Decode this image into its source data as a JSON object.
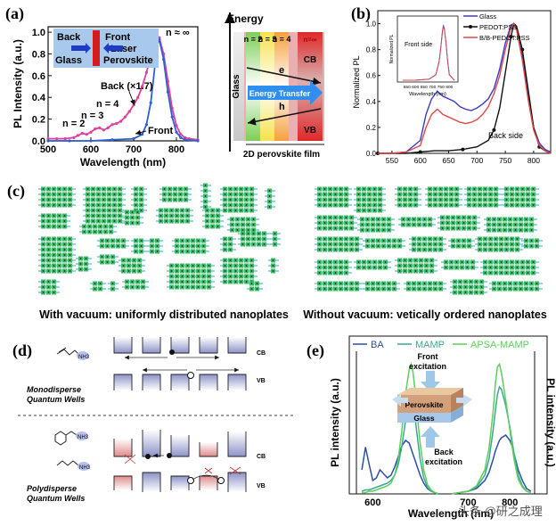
{
  "panels": {
    "a": {
      "label": "(a)",
      "chart_data": {
        "type": "line",
        "title": "",
        "xlabel": "Wavelength (nm)",
        "ylabel": "PL Intensity (a.u.)",
        "xlim": [
          500,
          850
        ],
        "ylim": [
          0.0,
          1.05
        ],
        "xticks": [
          "500",
          "600",
          "700",
          "800"
        ],
        "yticks": [
          "0.0",
          "0.2",
          "0.4",
          "0.6",
          "0.8",
          "1.0"
        ],
        "series": [
          {
            "name": "Back (×1.7)",
            "color": "#e0409a",
            "x": [
              500,
              520,
              540,
              560,
              570,
              580,
              590,
              600,
              610,
              620,
              630,
              640,
              650,
              660,
              670,
              680,
              690,
              700,
              710,
              720,
              730,
              740,
              750,
              755,
              760,
              770,
              780,
              790,
              800,
              810,
              820,
              830,
              850
            ],
            "y": [
              0.02,
              0.02,
              0.02,
              0.03,
              0.05,
              0.07,
              0.06,
              0.08,
              0.11,
              0.12,
              0.1,
              0.12,
              0.15,
              0.16,
              0.18,
              0.22,
              0.27,
              0.33,
              0.4,
              0.5,
              0.63,
              0.78,
              0.93,
              0.96,
              0.95,
              0.8,
              0.55,
              0.3,
              0.14,
              0.06,
              0.03,
              0.02,
              0.01
            ]
          },
          {
            "name": "Front",
            "color": "#2f5fd0",
            "x": [
              500,
              550,
              600,
              650,
              700,
              720,
              730,
              740,
              750,
              755,
              760,
              770,
              780,
              790,
              800,
              810,
              820,
              850
            ],
            "y": [
              0.0,
              0.0,
              0.0,
              0.01,
              0.02,
              0.06,
              0.15,
              0.35,
              0.7,
              0.88,
              0.93,
              0.75,
              0.45,
              0.22,
              0.08,
              0.03,
              0.01,
              0.0
            ]
          }
        ],
        "annotations": [
          "n = 2",
          "n = 3",
          "n = 4",
          "n ≈ ∞",
          "Back (×1.7)",
          "Front"
        ],
        "inset": {
          "back": "Back",
          "front": "Front",
          "glass": "Glass",
          "laser": "Laser",
          "perovskite": "Perovskite"
        }
      },
      "diagram": {
        "energy": "Energy",
        "glass": "Glass",
        "wells": [
          "n = 2",
          "n = 3",
          "n = 4",
          "n=∞"
        ],
        "cb": "CB",
        "vb": "VB",
        "electron": "e",
        "hole": "h",
        "transfer": "Energy Transfer",
        "film": "2D perovskite film"
      }
    },
    "b": {
      "label": "(b)",
      "chart_data": {
        "type": "line",
        "xlabel": "",
        "ylabel": "Normalized PL",
        "xlim": [
          525,
          830
        ],
        "ylim": [
          0.0,
          1.1
        ],
        "xticks": [
          "550",
          "600",
          "650",
          "700",
          "750",
          "800"
        ],
        "yticks": [
          "0.0",
          "0.2",
          "0.4",
          "0.6",
          "0.8",
          "1.0"
        ],
        "series": [
          {
            "name": "Glass",
            "color": "#3a3ac8",
            "x": [
              525,
              550,
              575,
              600,
              610,
              620,
              630,
              640,
              650,
              660,
              670,
              680,
              690,
              700,
              710,
              720,
              730,
              740,
              750,
              760,
              765,
              770,
              780,
              790,
              800,
              810,
              820,
              830
            ],
            "y": [
              0.0,
              0.0,
              0.01,
              0.1,
              0.3,
              0.42,
              0.48,
              0.44,
              0.42,
              0.4,
              0.36,
              0.34,
              0.33,
              0.35,
              0.38,
              0.42,
              0.5,
              0.65,
              0.85,
              0.99,
              1.0,
              0.96,
              0.75,
              0.45,
              0.2,
              0.08,
              0.03,
              0.01
            ]
          },
          {
            "name": "PEDOT:PSS",
            "color": "#111111",
            "x": [
              525,
              550,
              575,
              600,
              625,
              650,
              675,
              700,
              720,
              730,
              740,
              750,
              760,
              765,
              770,
              780,
              790,
              800,
              810,
              820,
              830
            ],
            "y": [
              0.0,
              0.0,
              0.0,
              0.01,
              0.02,
              0.02,
              0.03,
              0.05,
              0.1,
              0.18,
              0.35,
              0.62,
              0.9,
              1.0,
              0.98,
              0.8,
              0.5,
              0.2,
              0.05,
              0.02,
              0.0
            ]
          },
          {
            "name": "B/B-PEDOT:PSS",
            "color": "#e04848",
            "x": [
              525,
              550,
              575,
              600,
              610,
              620,
              630,
              640,
              650,
              660,
              670,
              680,
              690,
              700,
              710,
              720,
              730,
              740,
              750,
              760,
              765,
              770,
              780,
              790,
              800,
              810,
              820,
              830
            ],
            "y": [
              0.0,
              0.0,
              0.01,
              0.06,
              0.2,
              0.3,
              0.34,
              0.3,
              0.28,
              0.26,
              0.24,
              0.23,
              0.24,
              0.26,
              0.3,
              0.36,
              0.46,
              0.6,
              0.8,
              0.97,
              1.0,
              0.95,
              0.72,
              0.42,
              0.18,
              0.06,
              0.02,
              0.0
            ]
          }
        ],
        "annotations": [
          "Back side"
        ],
        "inset": {
          "title": "Front side",
          "xlabel": "Wavelength (nm)",
          "ylabel": "Normalized PL",
          "xticks": [
            "550",
            "600",
            "650",
            "700",
            "750",
            "800"
          ]
        }
      }
    },
    "c": {
      "label": "(c)",
      "caption_left": "With vacuum: uniformly distributed nanoplates",
      "caption_right": "Without vacuum: vetically ordered nanoplates"
    },
    "d": {
      "label": "(d)",
      "cb": "CB",
      "vb": "VB",
      "mono_line1": "Monodisperse",
      "mono_line2": "Quantum Wells",
      "poly_line1": "Polydisperse",
      "poly_line2": "Quantum Wells",
      "nh3": "NH3"
    },
    "e": {
      "label": "(e)",
      "chart_data": {
        "type": "line",
        "xlabel": "Wavelength (nm)",
        "ylabel": "PL intensity (a.u.)",
        "legend": [
          "BA",
          "MAMP",
          "APSA-MAMP"
        ],
        "colors": [
          "#2b4fa8",
          "#3aa890",
          "#5ccf5c"
        ],
        "left": {
          "x": [
            570,
            580,
            590,
            600,
            610,
            620,
            630,
            640,
            650,
            660,
            670,
            680,
            690,
            700,
            705,
            710,
            715,
            720,
            730,
            740,
            750,
            760,
            770,
            780
          ],
          "series": [
            [
              0.18,
              0.35,
              0.22,
              0.1,
              0.12,
              0.18,
              0.15,
              0.12,
              0.14,
              0.2,
              0.28,
              0.36,
              0.4,
              0.38,
              0.34,
              0.3,
              0.26,
              0.22,
              0.14,
              0.08,
              0.04,
              0.02,
              0.01,
              0.0
            ],
            [
              0.02,
              0.03,
              0.03,
              0.04,
              0.05,
              0.06,
              0.07,
              0.08,
              0.1,
              0.14,
              0.22,
              0.36,
              0.55,
              0.74,
              0.79,
              0.72,
              0.6,
              0.48,
              0.26,
              0.12,
              0.05,
              0.02,
              0.01,
              0.0
            ],
            [
              0.01,
              0.01,
              0.02,
              0.02,
              0.03,
              0.04,
              0.05,
              0.06,
              0.08,
              0.14,
              0.26,
              0.48,
              0.75,
              0.93,
              0.97,
              0.92,
              0.8,
              0.65,
              0.38,
              0.18,
              0.07,
              0.03,
              0.01,
              0.0
            ]
          ],
          "xticks": [
            "600"
          ]
        },
        "right": {
          "x": [
            660,
            680,
            700,
            720,
            740,
            750,
            760,
            765,
            770,
            775,
            780,
            790,
            800,
            805,
            810,
            815,
            820,
            830,
            840,
            850
          ],
          "series": [
            [
              0.0,
              0.01,
              0.02,
              0.04,
              0.1,
              0.16,
              0.26,
              0.32,
              0.36,
              0.4,
              0.42,
              0.44,
              0.4,
              0.36,
              0.3,
              0.24,
              0.18,
              0.1,
              0.04,
              0.02
            ],
            [
              0.0,
              0.01,
              0.02,
              0.05,
              0.14,
              0.26,
              0.48,
              0.62,
              0.74,
              0.8,
              0.78,
              0.66,
              0.5,
              0.4,
              0.3,
              0.22,
              0.14,
              0.06,
              0.02,
              0.01
            ],
            [
              0.0,
              0.01,
              0.02,
              0.06,
              0.18,
              0.34,
              0.62,
              0.82,
              0.95,
              0.97,
              0.9,
              0.7,
              0.48,
              0.36,
              0.26,
              0.18,
              0.11,
              0.05,
              0.02,
              0.01
            ]
          ],
          "xticks": [
            "700",
            "800"
          ]
        },
        "front": "Front",
        "front2": "excitation",
        "back": "Back",
        "back2": "excitation",
        "perovskite": "Perovskite",
        "glass": "Glass"
      }
    }
  },
  "watermark": "头条 @研之成理"
}
